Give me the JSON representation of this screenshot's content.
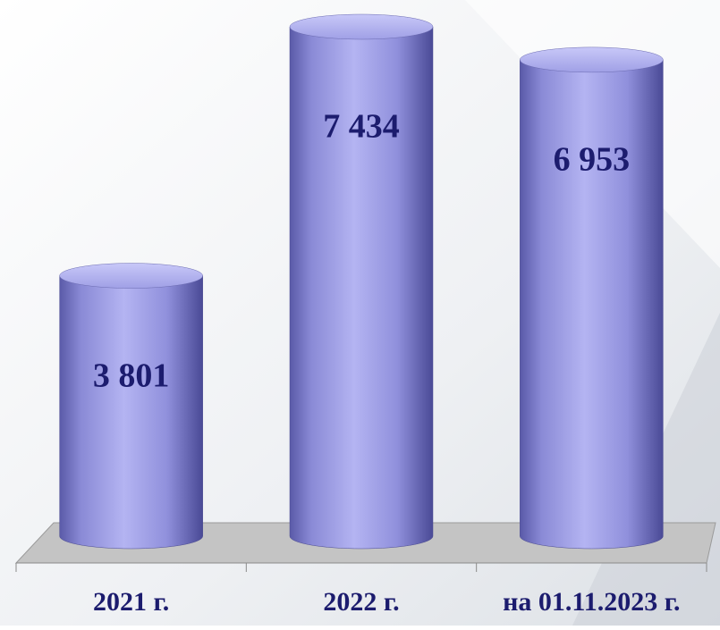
{
  "chart_data": {
    "type": "bar",
    "categories": [
      "2021 г.",
      "2022 г.",
      "на 01.11.2023 г."
    ],
    "values": [
      3801,
      7434,
      6953
    ],
    "value_labels": [
      "3 801",
      "7 434",
      "6 953"
    ],
    "color": "#9d9de6"
  }
}
